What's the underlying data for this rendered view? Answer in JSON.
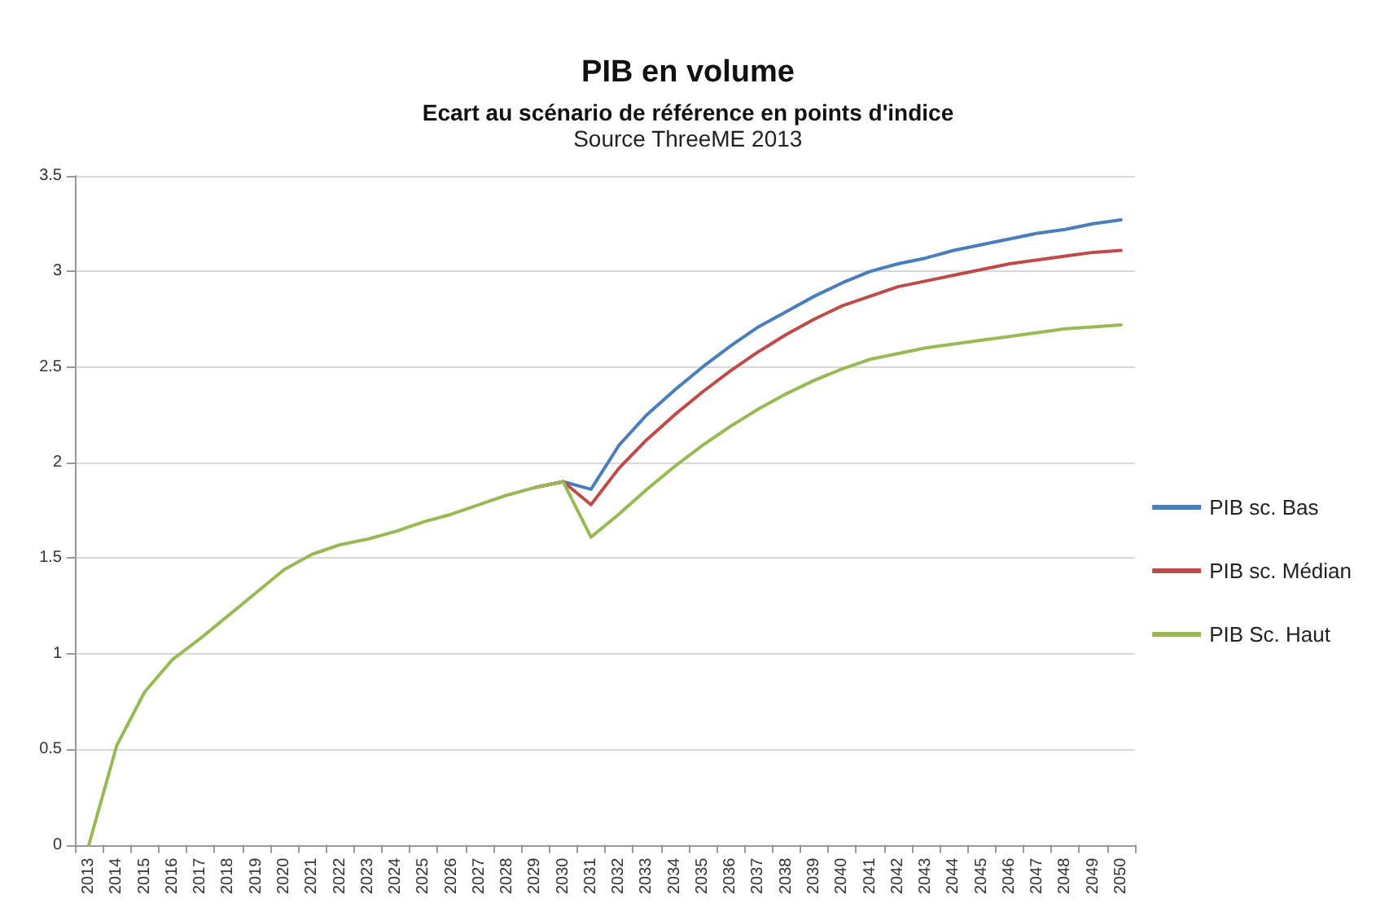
{
  "chart_data": {
    "type": "line",
    "title": "PIB en volume",
    "subtitle": "Ecart au scénario de référence en points d'indice",
    "annotations": [
      "Source ThreeME 2013"
    ],
    "categories": [
      "2013",
      "2014",
      "2015",
      "2016",
      "2017",
      "2018",
      "2019",
      "2020",
      "2021",
      "2022",
      "2023",
      "2024",
      "2025",
      "2026",
      "2027",
      "2028",
      "2029",
      "2030",
      "2031",
      "2032",
      "2033",
      "2034",
      "2035",
      "2036",
      "2037",
      "2038",
      "2039",
      "2040",
      "2041",
      "2042",
      "2043",
      "2044",
      "2045",
      "2046",
      "2047",
      "2048",
      "2049",
      "2050"
    ],
    "series": [
      {
        "name": "PIB sc. Bas",
        "color": "#4a7ebb",
        "values": [
          null,
          null,
          null,
          null,
          null,
          null,
          null,
          null,
          null,
          null,
          null,
          null,
          null,
          null,
          null,
          null,
          1.87,
          1.9,
          1.86,
          2.09,
          2.25,
          2.38,
          2.5,
          2.61,
          2.71,
          2.79,
          2.87,
          2.94,
          3.0,
          3.04,
          3.07,
          3.11,
          3.14,
          3.17,
          3.2,
          3.22,
          3.25,
          3.27
        ]
      },
      {
        "name": "PIB sc. Médian",
        "color": "#be4b48",
        "values": [
          null,
          null,
          null,
          null,
          null,
          null,
          null,
          null,
          null,
          null,
          null,
          null,
          null,
          null,
          null,
          null,
          1.87,
          1.9,
          1.78,
          1.97,
          2.12,
          2.25,
          2.37,
          2.48,
          2.58,
          2.67,
          2.75,
          2.82,
          2.87,
          2.92,
          2.95,
          2.98,
          3.01,
          3.04,
          3.06,
          3.08,
          3.1,
          3.11
        ]
      },
      {
        "name": "PIB Sc. Haut",
        "color": "#98b954",
        "values": [
          0,
          0.52,
          0.8,
          0.97,
          1.08,
          1.2,
          1.32,
          1.44,
          1.52,
          1.57,
          1.6,
          1.64,
          1.69,
          1.73,
          1.78,
          1.83,
          1.87,
          1.9,
          1.61,
          1.73,
          1.86,
          1.98,
          2.09,
          2.19,
          2.28,
          2.36,
          2.43,
          2.49,
          2.54,
          2.57,
          2.6,
          2.62,
          2.64,
          2.66,
          2.68,
          2.7,
          2.71,
          2.72
        ]
      }
    ],
    "ylim": [
      0,
      3.5
    ],
    "yticks": [
      0,
      0.5,
      1,
      1.5,
      2,
      2.5,
      3,
      3.5
    ],
    "grid": "y",
    "legend": "right",
    "marker": "none",
    "line_style": "solid"
  }
}
